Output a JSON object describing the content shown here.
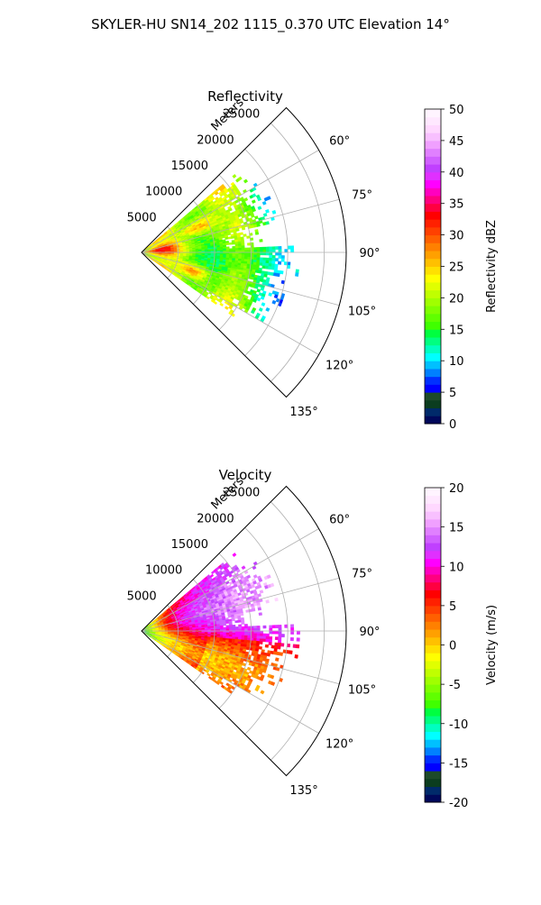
{
  "figure": {
    "suptitle": "SKYLER-HU  SN14_202  1115_0.370 UTC Elevation 14°"
  },
  "chart_data": [
    {
      "type": "heatmap",
      "projection": "polar-sector",
      "title": "Reflectivity",
      "radial_label": "Meters",
      "radial_ticks": [
        5000,
        10000,
        15000,
        20000,
        25000
      ],
      "radial_tick_labels": [
        "5000",
        "10000",
        "15000",
        "20000",
        "25000"
      ],
      "rmax": 28000,
      "azimuth_range": [
        45,
        135
      ],
      "azimuth_ticks": [
        60,
        75,
        90,
        105,
        120,
        135
      ],
      "azimuth_tick_labels": [
        "60°",
        "75°",
        "90°",
        "105°",
        "120°",
        "135°"
      ],
      "grid": true,
      "colorbar": {
        "label": "Reflectivity dBZ",
        "range": [
          0,
          50
        ],
        "ticks": [
          0,
          5,
          10,
          15,
          20,
          25,
          30,
          35,
          40,
          45,
          50
        ],
        "tick_labels": [
          "0",
          "5",
          "10",
          "15",
          "20",
          "25",
          "30",
          "35",
          "40",
          "45",
          "50"
        ]
      },
      "field_description": "Echoes mostly 15–28 dBZ out to about 18000 m across azimuths 50–125°, with pockets of 30–37 dBZ near 7000–10000 m at azimuths 65° and 110°, and weaker 12–15 dBZ returns at far range near 90°.",
      "field_extent": {
        "azimuth": [
          50,
          125
        ],
        "range": [
          0,
          19000
        ]
      }
    },
    {
      "type": "heatmap",
      "projection": "polar-sector",
      "title": "Velocity",
      "radial_label": "Meters",
      "radial_ticks": [
        5000,
        10000,
        15000,
        20000,
        25000
      ],
      "radial_tick_labels": [
        "5000",
        "10000",
        "15000",
        "20000",
        "25000"
      ],
      "rmax": 28000,
      "azimuth_range": [
        45,
        135
      ],
      "azimuth_ticks": [
        60,
        75,
        90,
        105,
        120,
        135
      ],
      "azimuth_tick_labels": [
        "60°",
        "75°",
        "90°",
        "105°",
        "120°",
        "135°"
      ],
      "grid": true,
      "colorbar": {
        "label": "Velocity (m/s)",
        "range": [
          -20,
          20
        ],
        "ticks": [
          -20,
          -15,
          -10,
          -5,
          0,
          5,
          10,
          15,
          20
        ],
        "tick_labels": [
          "-20",
          "-15",
          "-10",
          "-5",
          "0",
          "5",
          "10",
          "15",
          "20"
        ]
      },
      "field_description": "Near the radar velocities about -10 to -3 m/s; beyond ~4000 m values rise through 0–5 m/s to 8–12 m/s; at azimuths 55–90° and 5000–14000 m values reach 13–17 m/s; at azimuths 95–125° values are 4–9 m/s.",
      "field_extent": {
        "azimuth": [
          50,
          125
        ],
        "range": [
          0,
          19000
        ]
      }
    }
  ],
  "colors": {
    "reflectivity_scale": [
      "#00085a",
      "#002a6a",
      "#0b3d1f",
      "#1d4a2a",
      "#0000ff",
      "#0030ff",
      "#0080ff",
      "#00c0ff",
      "#00ffff",
      "#00ffc0",
      "#00ff80",
      "#00ff40",
      "#40ff00",
      "#60ff00",
      "#80ff00",
      "#a0ff00",
      "#c0ff00",
      "#e0ff00",
      "#ffff00",
      "#ffe000",
      "#ffc000",
      "#ffa000",
      "#ff8000",
      "#ff6000",
      "#ff4000",
      "#ff2000",
      "#ff0000",
      "#ff0040",
      "#ff0080",
      "#ff00c0",
      "#ff00ff",
      "#e030ff",
      "#c040ff",
      "#d060ff",
      "#e080ff",
      "#f0a0ff",
      "#f8c0ff",
      "#ffd8ff",
      "#ffe8ff",
      "#fff4ff"
    ],
    "velocity_scale": [
      "#00085a",
      "#002a6a",
      "#0b3d1f",
      "#1d4a2a",
      "#0000ff",
      "#0030ff",
      "#0080ff",
      "#00c0ff",
      "#00ffff",
      "#00ffc0",
      "#00ff80",
      "#00ff40",
      "#40ff00",
      "#60ff00",
      "#80ff00",
      "#a0ff00",
      "#c0ff00",
      "#e0ff00",
      "#ffff00",
      "#ffe000",
      "#ffc000",
      "#ffa000",
      "#ff8000",
      "#ff6000",
      "#ff4000",
      "#ff2000",
      "#ff0000",
      "#ff0040",
      "#ff0080",
      "#ff00c0",
      "#ff00ff",
      "#e030ff",
      "#c040ff",
      "#d060ff",
      "#e080ff",
      "#f0a0ff",
      "#f8c0ff",
      "#ffd8ff",
      "#ffe8ff",
      "#fff4ff"
    ],
    "grid": "#b0b0b0",
    "axis": "#000000"
  }
}
